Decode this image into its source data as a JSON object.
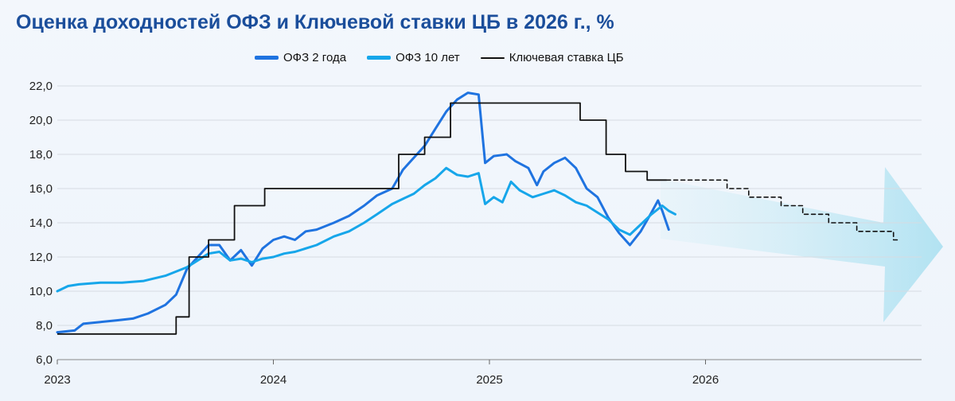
{
  "title": "Оценка доходностей ОФЗ и Ключевой ставки ЦБ в 2026 г., %",
  "chart_data": {
    "type": "line",
    "title": "Оценка доходностей ОФЗ и Ключевой ставки ЦБ в 2026 г., %",
    "ylim": [
      6,
      22
    ],
    "y_ticks": [
      "22,0",
      "20,0",
      "18,0",
      "16,0",
      "14,0",
      "12,0",
      "10,0",
      "8,0",
      "6,0"
    ],
    "x_ticks": [
      "2023",
      "2024",
      "2025",
      "2026"
    ],
    "xlim": [
      2023.0,
      2026.99
    ],
    "grid": true,
    "legend_position": "top",
    "series": [
      {
        "name": "ОФЗ 2 года",
        "color": "#1f73e0",
        "style": "thick",
        "points": [
          [
            2023.0,
            7.6
          ],
          [
            2023.08,
            7.7
          ],
          [
            2023.12,
            8.1
          ],
          [
            2023.2,
            8.2
          ],
          [
            2023.28,
            8.3
          ],
          [
            2023.35,
            8.4
          ],
          [
            2023.42,
            8.7
          ],
          [
            2023.5,
            9.2
          ],
          [
            2023.55,
            9.8
          ],
          [
            2023.6,
            11.3
          ],
          [
            2023.65,
            12.0
          ],
          [
            2023.7,
            12.7
          ],
          [
            2023.75,
            12.7
          ],
          [
            2023.8,
            11.8
          ],
          [
            2023.85,
            12.4
          ],
          [
            2023.9,
            11.5
          ],
          [
            2023.95,
            12.5
          ],
          [
            2024.0,
            13.0
          ],
          [
            2024.05,
            13.2
          ],
          [
            2024.1,
            13.0
          ],
          [
            2024.15,
            13.5
          ],
          [
            2024.2,
            13.6
          ],
          [
            2024.28,
            14.0
          ],
          [
            2024.35,
            14.4
          ],
          [
            2024.42,
            15.0
          ],
          [
            2024.48,
            15.6
          ],
          [
            2024.55,
            16.0
          ],
          [
            2024.6,
            17.1
          ],
          [
            2024.65,
            17.8
          ],
          [
            2024.7,
            18.5
          ],
          [
            2024.75,
            19.5
          ],
          [
            2024.8,
            20.5
          ],
          [
            2024.85,
            21.2
          ],
          [
            2024.9,
            21.6
          ],
          [
            2024.95,
            21.5
          ],
          [
            2024.98,
            17.5
          ],
          [
            2025.02,
            17.9
          ],
          [
            2025.08,
            18.0
          ],
          [
            2025.12,
            17.6
          ],
          [
            2025.18,
            17.2
          ],
          [
            2025.22,
            16.2
          ],
          [
            2025.25,
            17.0
          ],
          [
            2025.3,
            17.5
          ],
          [
            2025.35,
            17.8
          ],
          [
            2025.4,
            17.2
          ],
          [
            2025.45,
            16.0
          ],
          [
            2025.5,
            15.5
          ],
          [
            2025.55,
            14.3
          ],
          [
            2025.6,
            13.4
          ],
          [
            2025.65,
            12.7
          ],
          [
            2025.7,
            13.5
          ],
          [
            2025.75,
            14.6
          ],
          [
            2025.78,
            15.3
          ],
          [
            2025.8,
            14.7
          ],
          [
            2025.83,
            13.6
          ]
        ]
      },
      {
        "name": "ОФЗ 10 лет",
        "color": "#16a6ea",
        "style": "thick",
        "points": [
          [
            2023.0,
            10.0
          ],
          [
            2023.05,
            10.3
          ],
          [
            2023.1,
            10.4
          ],
          [
            2023.2,
            10.5
          ],
          [
            2023.3,
            10.5
          ],
          [
            2023.4,
            10.6
          ],
          [
            2023.5,
            10.9
          ],
          [
            2023.6,
            11.4
          ],
          [
            2023.65,
            11.8
          ],
          [
            2023.7,
            12.2
          ],
          [
            2023.75,
            12.3
          ],
          [
            2023.8,
            11.8
          ],
          [
            2023.85,
            11.9
          ],
          [
            2023.9,
            11.7
          ],
          [
            2023.95,
            11.9
          ],
          [
            2024.0,
            12.0
          ],
          [
            2024.05,
            12.2
          ],
          [
            2024.1,
            12.3
          ],
          [
            2024.2,
            12.7
          ],
          [
            2024.28,
            13.2
          ],
          [
            2024.35,
            13.5
          ],
          [
            2024.42,
            14.0
          ],
          [
            2024.48,
            14.5
          ],
          [
            2024.55,
            15.1
          ],
          [
            2024.6,
            15.4
          ],
          [
            2024.65,
            15.7
          ],
          [
            2024.7,
            16.2
          ],
          [
            2024.75,
            16.6
          ],
          [
            2024.8,
            17.2
          ],
          [
            2024.85,
            16.8
          ],
          [
            2024.9,
            16.7
          ],
          [
            2024.95,
            16.9
          ],
          [
            2024.98,
            15.1
          ],
          [
            2025.02,
            15.5
          ],
          [
            2025.06,
            15.2
          ],
          [
            2025.1,
            16.4
          ],
          [
            2025.14,
            15.9
          ],
          [
            2025.2,
            15.5
          ],
          [
            2025.25,
            15.7
          ],
          [
            2025.3,
            15.9
          ],
          [
            2025.35,
            15.6
          ],
          [
            2025.4,
            15.2
          ],
          [
            2025.45,
            15.0
          ],
          [
            2025.5,
            14.6
          ],
          [
            2025.55,
            14.2
          ],
          [
            2025.6,
            13.6
          ],
          [
            2025.65,
            13.3
          ],
          [
            2025.7,
            13.9
          ],
          [
            2025.75,
            14.5
          ],
          [
            2025.8,
            15.0
          ],
          [
            2025.83,
            14.7
          ],
          [
            2025.86,
            14.5
          ]
        ]
      },
      {
        "name": "Ключевая ставка ЦБ",
        "color": "#111111",
        "style": "step",
        "points": [
          [
            2023.0,
            7.5
          ],
          [
            2023.55,
            7.5
          ],
          [
            2023.55,
            8.5
          ],
          [
            2023.61,
            8.5
          ],
          [
            2023.61,
            12.0
          ],
          [
            2023.7,
            12.0
          ],
          [
            2023.7,
            13.0
          ],
          [
            2023.82,
            13.0
          ],
          [
            2023.82,
            15.0
          ],
          [
            2023.96,
            15.0
          ],
          [
            2023.96,
            16.0
          ],
          [
            2024.58,
            16.0
          ],
          [
            2024.58,
            18.0
          ],
          [
            2024.7,
            18.0
          ],
          [
            2024.7,
            19.0
          ],
          [
            2024.82,
            19.0
          ],
          [
            2024.82,
            21.0
          ],
          [
            2025.42,
            21.0
          ],
          [
            2025.42,
            20.0
          ],
          [
            2025.54,
            20.0
          ],
          [
            2025.54,
            18.0
          ],
          [
            2025.63,
            18.0
          ],
          [
            2025.63,
            17.0
          ],
          [
            2025.73,
            17.0
          ],
          [
            2025.73,
            16.5
          ],
          [
            2025.82,
            16.5
          ]
        ]
      },
      {
        "name": "Ключевая ставка ЦБ",
        "color": "#111111",
        "style": "dashed",
        "points": [
          [
            2025.82,
            16.5
          ],
          [
            2026.1,
            16.5
          ],
          [
            2026.1,
            16.0
          ],
          [
            2026.2,
            16.0
          ],
          [
            2026.2,
            15.5
          ],
          [
            2026.35,
            15.5
          ],
          [
            2026.35,
            15.0
          ],
          [
            2026.45,
            15.0
          ],
          [
            2026.45,
            14.5
          ],
          [
            2026.57,
            14.5
          ],
          [
            2026.57,
            14.0
          ],
          [
            2026.7,
            14.0
          ],
          [
            2026.7,
            13.5
          ],
          [
            2026.87,
            13.5
          ],
          [
            2026.87,
            13.0
          ],
          [
            2026.9,
            13.0
          ]
        ]
      }
    ]
  }
}
